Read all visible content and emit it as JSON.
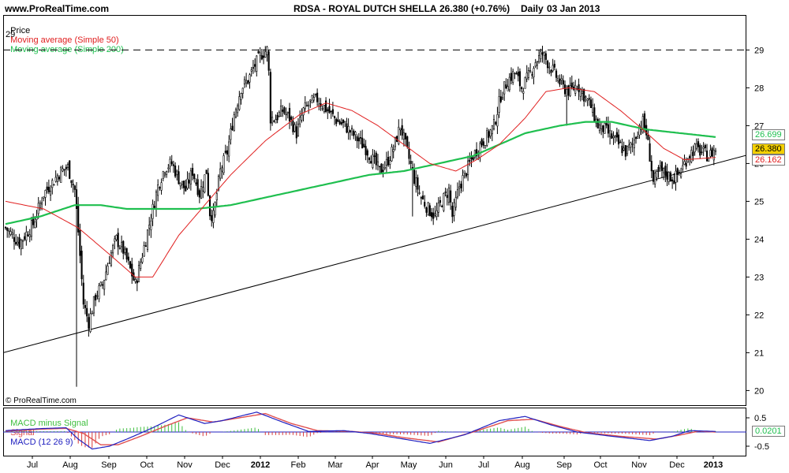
{
  "header": {
    "site": "www.ProRealTime.com",
    "instrument": "RDSA - ROYAL DUTCH SHELLA",
    "last_change": "26.380 (+0.76%)",
    "period": "Daily",
    "date": "03 Jan 2013"
  },
  "legend": {
    "price": "Price",
    "ma50": "Moving average (Simple 50)",
    "ma200": "Moving average (Simple 200)"
  },
  "macd_legend": {
    "hist": "MACD minus Signal",
    "signal": "Signal",
    "macd": "MACD (12 26 9)"
  },
  "watermark": "© ProRealTime.com",
  "level_line_label": "29",
  "tags": {
    "ma200": "26.699",
    "last": "26.380",
    "ma50": "26.162",
    "macd_value": "0.0201"
  },
  "colors": {
    "candle_up": "#ffffff",
    "candle_down": "#000000",
    "ma50": "#e02020",
    "ma200": "#1fbf4f",
    "trendline": "#000000",
    "level_line": "#000000",
    "macd_line": "#2020c0",
    "signal_line": "#e05050",
    "hist_pos": "#3fbf3f",
    "hist_neg": "#d83a3a",
    "zero_line": "#2020c0",
    "last_tag_bg": "#f4d000"
  },
  "chart_data": [
    {
      "type": "candlestick",
      "title": "RDSA - ROYAL DUTCH SHELLA",
      "ylim": [
        19.8,
        29.8
      ],
      "y_ticks": [
        "20",
        "21",
        "22",
        "23",
        "24",
        "25",
        "26",
        "27",
        "28",
        "29"
      ],
      "x_tick_labels": [
        "Jul",
        "Aug",
        "Sep",
        "Oct",
        "Nov",
        "Dec",
        "2012",
        "Feb",
        "Mar",
        "Apr",
        "May",
        "Jun",
        "Jul",
        "Aug",
        "Sep",
        "Oct",
        "Nov",
        "Dec",
        "2013"
      ],
      "grid": false,
      "close_anchors": [
        [
          0,
          24.3
        ],
        [
          8,
          23.9
        ],
        [
          16,
          24.4
        ],
        [
          22,
          25.2
        ],
        [
          27,
          25.5
        ],
        [
          32,
          25.8
        ],
        [
          36,
          25.9
        ],
        [
          40,
          25.3
        ],
        [
          42,
          24.2
        ],
        [
          45,
          22.3
        ],
        [
          48,
          21.8
        ],
        [
          52,
          22.5
        ],
        [
          56,
          22.8
        ],
        [
          60,
          23.5
        ],
        [
          64,
          24.0
        ],
        [
          68,
          23.7
        ],
        [
          72,
          23.2
        ],
        [
          75,
          22.8
        ],
        [
          80,
          23.8
        ],
        [
          84,
          24.6
        ],
        [
          88,
          25.4
        ],
        [
          92,
          25.9
        ],
        [
          96,
          26.0
        ],
        [
          100,
          25.6
        ],
        [
          104,
          25.3
        ],
        [
          108,
          25.8
        ],
        [
          112,
          25.2
        ],
        [
          116,
          25.8
        ],
        [
          118,
          24.7
        ],
        [
          120,
          24.6
        ],
        [
          124,
          25.8
        ],
        [
          128,
          26.3
        ],
        [
          132,
          27.3
        ],
        [
          136,
          28.0
        ],
        [
          140,
          28.2
        ],
        [
          144,
          28.6
        ],
        [
          148,
          28.9
        ],
        [
          151,
          29.0
        ],
        [
          152,
          28.4
        ],
        [
          153,
          27.2
        ],
        [
          156,
          27.2
        ],
        [
          160,
          27.4
        ],
        [
          164,
          27.2
        ],
        [
          168,
          26.8
        ],
        [
          172,
          27.4
        ],
        [
          176,
          27.6
        ],
        [
          180,
          27.7
        ],
        [
          184,
          27.5
        ],
        [
          188,
          27.3
        ],
        [
          192,
          27.1
        ],
        [
          196,
          27.0
        ],
        [
          200,
          26.8
        ],
        [
          204,
          26.6
        ],
        [
          208,
          26.4
        ],
        [
          212,
          26.1
        ],
        [
          216,
          25.8
        ],
        [
          220,
          26.0
        ],
        [
          224,
          26.4
        ],
        [
          228,
          27.0
        ],
        [
          232,
          26.3
        ],
        [
          236,
          25.6
        ],
        [
          240,
          25.1
        ],
        [
          244,
          24.8
        ],
        [
          248,
          24.6
        ],
        [
          252,
          25.0
        ],
        [
          256,
          25.3
        ],
        [
          258,
          24.6
        ],
        [
          262,
          25.4
        ],
        [
          266,
          25.8
        ],
        [
          270,
          26.2
        ],
        [
          274,
          26.5
        ],
        [
          278,
          26.7
        ],
        [
          282,
          27.0
        ],
        [
          286,
          27.8
        ],
        [
          290,
          28.2
        ],
        [
          294,
          28.4
        ],
        [
          298,
          28.0
        ],
        [
          302,
          28.3
        ],
        [
          306,
          28.7
        ],
        [
          310,
          28.9
        ],
        [
          314,
          28.6
        ],
        [
          318,
          28.3
        ],
        [
          322,
          28.0
        ],
        [
          326,
          27.9
        ],
        [
          330,
          28.1
        ],
        [
          334,
          27.8
        ],
        [
          338,
          27.5
        ],
        [
          342,
          27.0
        ],
        [
          346,
          26.9
        ],
        [
          350,
          26.7
        ],
        [
          354,
          26.5
        ],
        [
          358,
          26.3
        ],
        [
          362,
          26.5
        ],
        [
          366,
          27.0
        ],
        [
          368,
          27.1
        ],
        [
          370,
          26.8
        ],
        [
          372,
          26.2
        ],
        [
          374,
          25.5
        ],
        [
          378,
          25.8
        ],
        [
          382,
          25.7
        ],
        [
          386,
          25.6
        ],
        [
          390,
          25.8
        ],
        [
          394,
          26.2
        ],
        [
          398,
          26.4
        ],
        [
          402,
          26.3
        ],
        [
          406,
          26.2
        ],
        [
          410,
          26.38
        ]
      ],
      "ma50": [
        [
          0,
          25.0
        ],
        [
          22,
          24.8
        ],
        [
          42,
          24.3
        ],
        [
          60,
          23.6
        ],
        [
          75,
          23.0
        ],
        [
          85,
          23.0
        ],
        [
          100,
          24.1
        ],
        [
          115,
          24.9
        ],
        [
          130,
          25.7
        ],
        [
          150,
          26.6
        ],
        [
          170,
          27.3
        ],
        [
          185,
          27.6
        ],
        [
          200,
          27.4
        ],
        [
          215,
          27.0
        ],
        [
          230,
          26.5
        ],
        [
          245,
          26.0
        ],
        [
          260,
          25.8
        ],
        [
          272,
          26.1
        ],
        [
          285,
          26.5
        ],
        [
          300,
          27.2
        ],
        [
          312,
          27.9
        ],
        [
          325,
          28.0
        ],
        [
          340,
          27.9
        ],
        [
          355,
          27.4
        ],
        [
          368,
          26.9
        ],
        [
          380,
          26.4
        ],
        [
          392,
          26.1
        ],
        [
          410,
          26.16
        ]
      ],
      "ma200": [
        [
          0,
          24.4
        ],
        [
          20,
          24.6
        ],
        [
          40,
          24.9
        ],
        [
          55,
          24.9
        ],
        [
          70,
          24.8
        ],
        [
          95,
          24.8
        ],
        [
          110,
          24.8
        ],
        [
          130,
          24.9
        ],
        [
          150,
          25.1
        ],
        [
          170,
          25.3
        ],
        [
          190,
          25.5
        ],
        [
          210,
          25.7
        ],
        [
          230,
          25.8
        ],
        [
          250,
          26.0
        ],
        [
          270,
          26.2
        ],
        [
          285,
          26.5
        ],
        [
          300,
          26.8
        ],
        [
          320,
          27.0
        ],
        [
          335,
          27.1
        ],
        [
          350,
          27.1
        ],
        [
          370,
          26.9
        ],
        [
          390,
          26.8
        ],
        [
          410,
          26.7
        ]
      ],
      "trendline": [
        [
          0,
          21.0
        ],
        [
          410,
          26.0
        ]
      ],
      "level_line": 29.0
    },
    {
      "type": "line",
      "title": "MACD (12 26 9)",
      "ylim": [
        -0.75,
        0.75
      ],
      "y_ticks": [
        "0.5",
        "-0.5"
      ],
      "macd": [
        [
          0,
          0.05
        ],
        [
          20,
          0.12
        ],
        [
          35,
          0.15
        ],
        [
          42,
          -0.25
        ],
        [
          50,
          -0.6
        ],
        [
          60,
          -0.5
        ],
        [
          72,
          -0.2
        ],
        [
          85,
          0.15
        ],
        [
          100,
          0.6
        ],
        [
          115,
          0.3
        ],
        [
          125,
          0.4
        ],
        [
          145,
          0.7
        ],
        [
          160,
          0.35
        ],
        [
          175,
          0.02
        ],
        [
          195,
          0.05
        ],
        [
          210,
          -0.05
        ],
        [
          225,
          -0.2
        ],
        [
          245,
          -0.4
        ],
        [
          265,
          -0.1
        ],
        [
          285,
          0.4
        ],
        [
          300,
          0.55
        ],
        [
          315,
          0.25
        ],
        [
          330,
          0.0
        ],
        [
          350,
          -0.15
        ],
        [
          372,
          -0.3
        ],
        [
          385,
          -0.15
        ],
        [
          395,
          0.05
        ],
        [
          410,
          0.02
        ]
      ],
      "signal": [
        [
          0,
          0.03
        ],
        [
          20,
          0.1
        ],
        [
          35,
          0.13
        ],
        [
          45,
          -0.05
        ],
        [
          55,
          -0.45
        ],
        [
          65,
          -0.45
        ],
        [
          78,
          -0.15
        ],
        [
          92,
          0.2
        ],
        [
          105,
          0.5
        ],
        [
          120,
          0.35
        ],
        [
          135,
          0.5
        ],
        [
          150,
          0.65
        ],
        [
          165,
          0.3
        ],
        [
          180,
          0.05
        ],
        [
          200,
          0.02
        ],
        [
          215,
          -0.05
        ],
        [
          230,
          -0.2
        ],
        [
          250,
          -0.35
        ],
        [
          270,
          0.0
        ],
        [
          290,
          0.4
        ],
        [
          305,
          0.45
        ],
        [
          320,
          0.2
        ],
        [
          335,
          -0.02
        ],
        [
          355,
          -0.15
        ],
        [
          376,
          -0.25
        ],
        [
          390,
          -0.1
        ],
        [
          400,
          0.03
        ],
        [
          410,
          0.0
        ]
      ],
      "last_value": 0.0201
    }
  ]
}
